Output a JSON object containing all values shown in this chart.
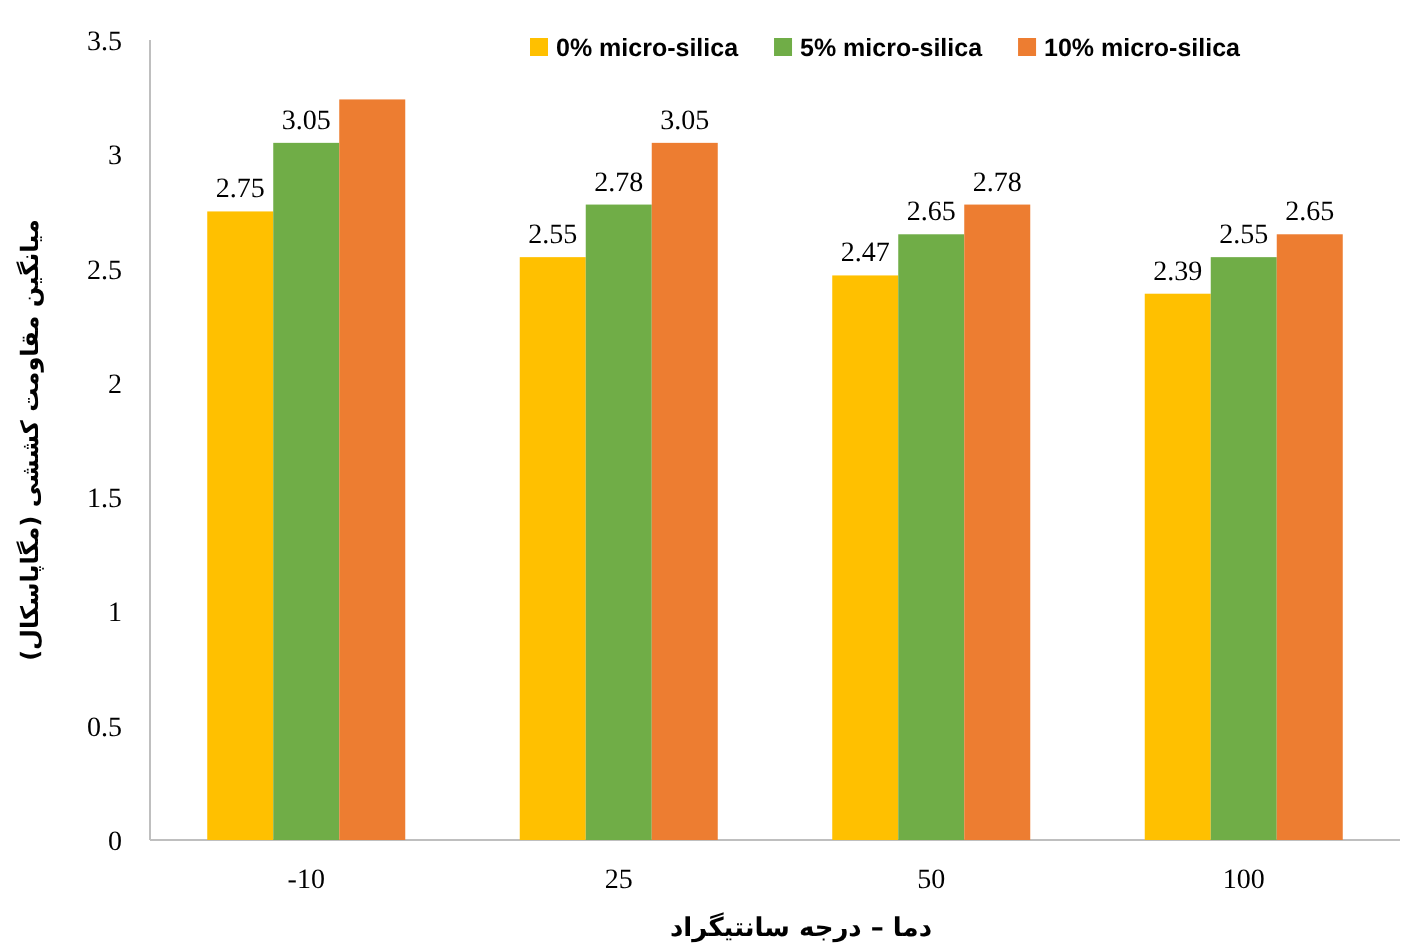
{
  "chart_data": {
    "type": "bar",
    "categories": [
      "-10",
      "25",
      "50",
      "100"
    ],
    "series": [
      {
        "name": "0% micro-silica",
        "color": "#ffc000",
        "values": [
          2.75,
          2.55,
          2.47,
          2.39
        ],
        "value_labels": [
          "2.75",
          "2.55",
          "2.47",
          "2.39"
        ]
      },
      {
        "name": "5% micro-silica",
        "color": "#70ad47",
        "values": [
          3.05,
          2.78,
          2.65,
          2.55
        ],
        "value_labels": [
          "3.05",
          "2.78",
          "2.65",
          "2.55"
        ]
      },
      {
        "name": "10% micro-silica",
        "color": "#ed7d31",
        "values": [
          3.24,
          3.05,
          2.78,
          2.65
        ],
        "value_labels": [
          null,
          "3.05",
          "2.78",
          "2.65"
        ]
      }
    ],
    "xlabel": "دما – درجه سانتیگراد",
    "ylabel": "میانگین مقاومت کششی (مگاپاسکال)",
    "ylim": [
      0,
      3.5
    ],
    "yticks": [
      0,
      0.5,
      1,
      1.5,
      2,
      2.5,
      3,
      3.5
    ],
    "grid": false,
    "legend": "top"
  }
}
